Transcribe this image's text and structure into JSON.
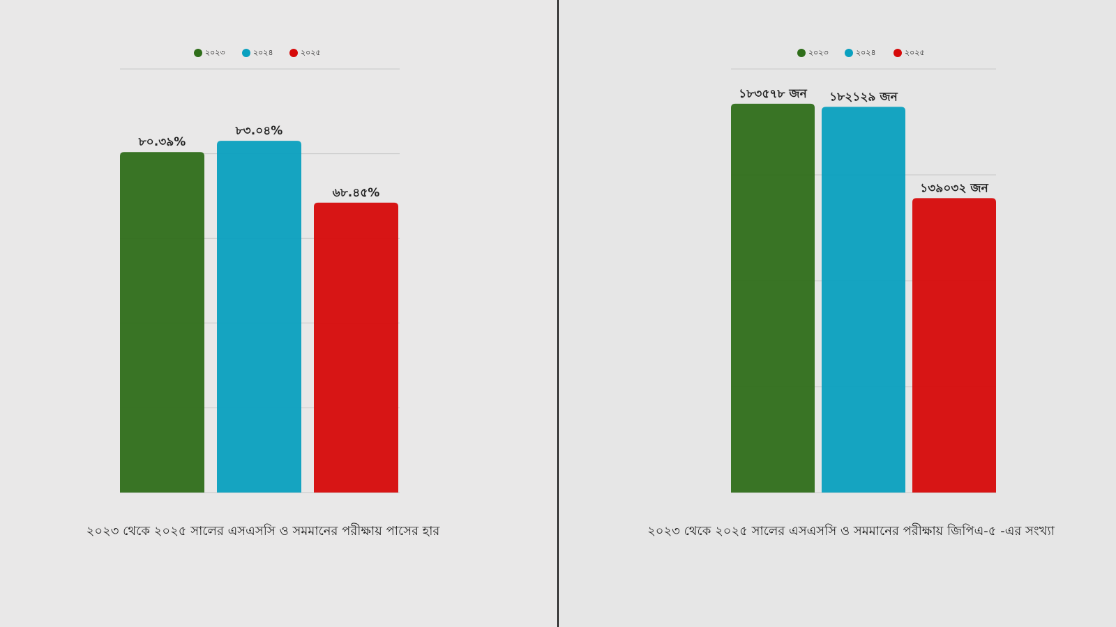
{
  "chart_data": [
    {
      "type": "bar",
      "title": "২০২৩ থেকে ২০২৫ সালের  এসএসসি ও সমমানের পরীক্ষায় পাসের হার",
      "categories": [
        "২০২৩",
        "২০২৪",
        "২০২৫"
      ],
      "values": [
        80.39,
        83.04,
        68.45
      ],
      "value_labels": [
        "৮০.৩৯%",
        "৮৩.০৪%",
        "৬৮.৪৫%"
      ],
      "colors": [
        "#2f6e1a",
        "#0aa0bf",
        "#d60a0a"
      ],
      "ylim": [
        0,
        100
      ],
      "yticks": [
        0,
        20,
        40,
        60,
        80,
        100
      ],
      "grid": true
    },
    {
      "type": "bar",
      "title": "২০২৩ থেকে ২০২৫ সালের এসএসসি ও সমমানের পরীক্ষায় জিপিএ-৫ -এর সংখ্যা",
      "categories": [
        "২০২৩",
        "২০২৪",
        "২০২৫"
      ],
      "values": [
        183578,
        182129,
        139032
      ],
      "value_labels": [
        "১৮৩৫৭৮ জন",
        "১৮২১২৯ জন",
        "১৩৯০৩২ জন"
      ],
      "colors": [
        "#2f6e1a",
        "#0aa0bf",
        "#d60a0a"
      ],
      "ylim": [
        0,
        200000
      ],
      "yticks": [
        0,
        50000,
        100000,
        150000,
        200000
      ],
      "grid": true
    }
  ]
}
